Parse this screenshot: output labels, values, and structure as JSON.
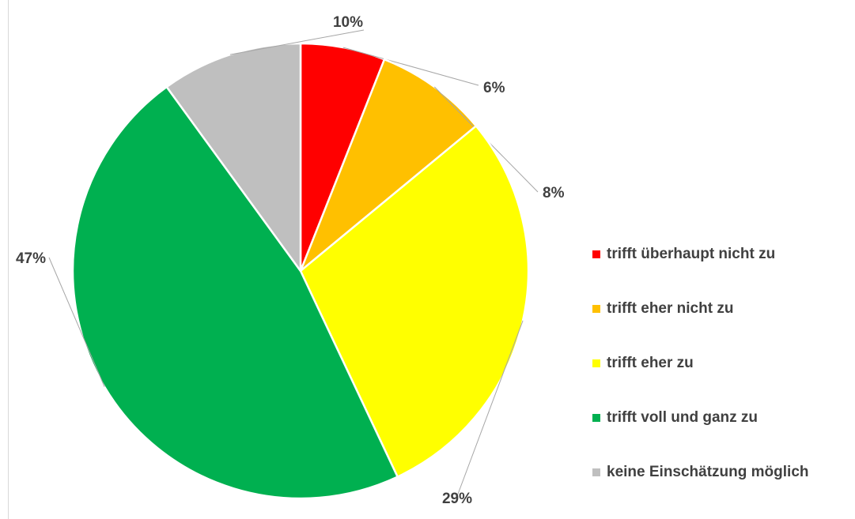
{
  "chart_data": {
    "type": "pie",
    "title": "",
    "categories": [
      "trifft überhaupt nicht zu",
      "trifft eher nicht zu",
      "trifft eher zu",
      "trifft voll und ganz zu",
      "keine Einschätzung möglich"
    ],
    "values": [
      6,
      8,
      29,
      47,
      10
    ],
    "value_labels": [
      "6%",
      "8%",
      "29%",
      "47%",
      "10%"
    ],
    "colors": [
      "#ff0000",
      "#ffc000",
      "#ffff00",
      "#00b050",
      "#bfbfbf"
    ],
    "start_angle_deg": 0,
    "direction": "clockwise",
    "legend_position": "right",
    "data_labels": "outside with leader lines"
  }
}
